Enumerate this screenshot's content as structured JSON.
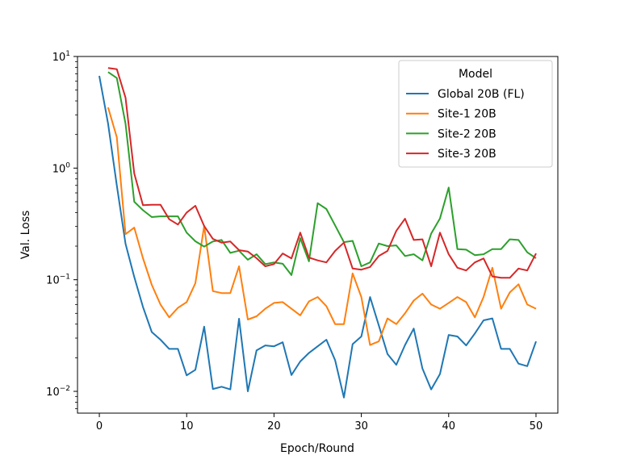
{
  "chart_data": {
    "type": "line",
    "title": "",
    "xlabel": "Epoch/Round",
    "ylabel": "Val. Loss",
    "xlim": [
      -2.5,
      52.5
    ],
    "ylim": [
      0.00638,
      10
    ],
    "yscale": "log",
    "grid": false,
    "xticks": [
      0,
      10,
      20,
      30,
      40,
      50
    ],
    "xtick_labels": [
      "0",
      "10",
      "20",
      "30",
      "40",
      "50"
    ],
    "yticks": [
      0.01,
      0.1,
      1,
      10
    ],
    "ytick_labels": [
      [
        "10",
        "−2"
      ],
      [
        "10",
        "−1"
      ],
      [
        "10",
        "0"
      ],
      [
        "10",
        "1"
      ]
    ],
    "legend": {
      "title": "Model",
      "placement": "top-right"
    },
    "series": [
      {
        "name": "Global 20B (FL)",
        "color": "#1f77b4",
        "x_start": 0,
        "values": [
          6.7,
          2.5,
          0.7,
          0.21,
          0.106,
          0.057,
          0.034,
          0.029,
          0.024,
          0.024,
          0.0139,
          0.0156,
          0.038,
          0.0105,
          0.011,
          0.0104,
          0.0447,
          0.01,
          0.0233,
          0.0258,
          0.0253,
          0.0275,
          0.014,
          0.0185,
          0.0221,
          0.0253,
          0.029,
          0.019,
          0.0088,
          0.0265,
          0.031,
          0.07,
          0.039,
          0.0216,
          0.0173,
          0.026,
          0.0365,
          0.016,
          0.0104,
          0.0143,
          0.032,
          0.031,
          0.0258,
          0.033,
          0.0433,
          0.045,
          0.024,
          0.024,
          0.0177,
          0.0168,
          0.028
        ]
      },
      {
        "name": "Site-1 20B",
        "color": "#ff7f0e",
        "x_start": 1,
        "values": [
          3.5,
          1.89,
          0.256,
          0.293,
          0.156,
          0.09,
          0.06,
          0.046,
          0.056,
          0.063,
          0.093,
          0.303,
          0.079,
          0.076,
          0.076,
          0.132,
          0.044,
          0.047,
          0.055,
          0.062,
          0.063,
          0.055,
          0.048,
          0.064,
          0.07,
          0.058,
          0.04,
          0.04,
          0.114,
          0.07,
          0.026,
          0.028,
          0.045,
          0.04,
          0.05,
          0.065,
          0.075,
          0.06,
          0.055,
          0.062,
          0.07,
          0.063,
          0.046,
          0.07,
          0.128,
          0.055,
          0.077,
          0.091,
          0.06,
          0.055
        ]
      },
      {
        "name": "Site-2 20B",
        "color": "#2ca02c",
        "x_start": 1,
        "values": [
          7.25,
          6.41,
          2.5,
          0.5,
          0.42,
          0.364,
          0.37,
          0.37,
          0.37,
          0.264,
          0.221,
          0.198,
          0.22,
          0.227,
          0.174,
          0.182,
          0.151,
          0.169,
          0.138,
          0.143,
          0.139,
          0.11,
          0.236,
          0.146,
          0.485,
          0.43,
          0.307,
          0.217,
          0.223,
          0.132,
          0.143,
          0.211,
          0.2,
          0.203,
          0.163,
          0.169,
          0.149,
          0.259,
          0.354,
          0.67,
          0.188,
          0.186,
          0.166,
          0.169,
          0.188,
          0.188,
          0.23,
          0.227,
          0.176,
          0.156
        ]
      },
      {
        "name": "Site-3 20B",
        "color": "#d62728",
        "x_start": 1,
        "values": [
          7.9,
          7.7,
          4.27,
          0.895,
          0.465,
          0.47,
          0.47,
          0.348,
          0.312,
          0.4,
          0.46,
          0.303,
          0.232,
          0.215,
          0.22,
          0.184,
          0.179,
          0.156,
          0.132,
          0.138,
          0.172,
          0.155,
          0.264,
          0.158,
          0.149,
          0.143,
          0.181,
          0.215,
          0.126,
          0.123,
          0.13,
          0.163,
          0.181,
          0.274,
          0.352,
          0.227,
          0.23,
          0.132,
          0.264,
          0.169,
          0.128,
          0.121,
          0.143,
          0.155,
          0.107,
          0.104,
          0.104,
          0.126,
          0.121,
          0.172
        ]
      }
    ]
  }
}
